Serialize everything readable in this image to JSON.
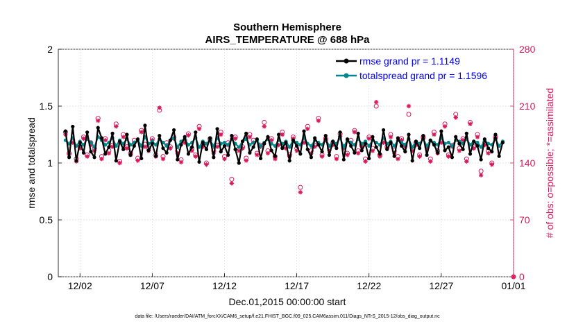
{
  "chart_data": {
    "type": "line",
    "title": "Southern Hemisphere",
    "subtitle": "AIRS_TEMPERATURE @ 688 hPa",
    "ylabel": "rmse and totalspread",
    "ylabel_right": "# of obs: o=possible; *=assimilated",
    "xlabel": "Dec.01,2015 00:00:00 start",
    "footnote": "data file: /Users/raeder/DAI/ATM_forcXX/CAM6_setup/f.e21.FHIST_BGC.f09_025.CAM6assim.011/Diags_NTrS_2015-12/obs_diag_output.nc",
    "ylim": [
      0,
      2
    ],
    "ylim_right": [
      0,
      280
    ],
    "xlim_days": [
      -0.5,
      31
    ],
    "x_ticks": [
      {
        "day": 1,
        "label": "12/02"
      },
      {
        "day": 6,
        "label": "12/07"
      },
      {
        "day": 11,
        "label": "12/12"
      },
      {
        "day": 16,
        "label": "12/17"
      },
      {
        "day": 21,
        "label": "12/22"
      },
      {
        "day": 26,
        "label": "12/27"
      },
      {
        "day": 31,
        "label": "01/01"
      }
    ],
    "y_ticks": [
      "0",
      "0.5",
      "1",
      "1.5",
      "2"
    ],
    "y_tick_values": [
      0,
      0.5,
      1,
      1.5,
      2
    ],
    "y_right_ticks": [
      "0",
      "70",
      "140",
      "210",
      "280"
    ],
    "y_right_tick_values": [
      0,
      70,
      140,
      210,
      280
    ],
    "legend_location": "top-right",
    "series": [
      {
        "name": "rmse grand pr = 1.1149",
        "color": "#000000",
        "axis": "left",
        "values": [
          1.28,
          1.05,
          1.32,
          1.02,
          1.18,
          1.09,
          1.27,
          1.1,
          1.05,
          1.31,
          1.22,
          1.08,
          1.14,
          1.26,
          1.02,
          1.19,
          1.12,
          1.25,
          1.07,
          1.15,
          1.21,
          1.04,
          1.33,
          1.11,
          1.17,
          1.06,
          1.24,
          1.13,
          1.09,
          1.2,
          1.29,
          1.03,
          1.16,
          1.23,
          1.08,
          1.14,
          1.27,
          1.01,
          1.18,
          1.12,
          1.22,
          1.05,
          1.3,
          1.1,
          1.15,
          1.07,
          1.24,
          1.12,
          1.0,
          1.19,
          1.26,
          1.09,
          1.14,
          1.21,
          1.04,
          1.17,
          1.23,
          1.11,
          1.06,
          1.25,
          1.13,
          1.18,
          1.02,
          1.2,
          1.15,
          1.08,
          1.28,
          1.12,
          1.05,
          1.22,
          1.16,
          1.1,
          1.24,
          1.07,
          1.19,
          1.13,
          1.27,
          1.03,
          1.21,
          1.15,
          1.09,
          1.26,
          1.11,
          1.17,
          1.04,
          1.23,
          1.14,
          1.08,
          1.29,
          1.12,
          1.18,
          1.06,
          1.22,
          1.15,
          1.1,
          1.25,
          1.02,
          1.19,
          1.13,
          1.24,
          1.07,
          1.2,
          1.16,
          1.09,
          1.28,
          1.11,
          1.14,
          1.05,
          1.23,
          1.17,
          1.12,
          1.26,
          1.08,
          1.19,
          1.15,
          1.03,
          1.21,
          1.13,
          1.1,
          1.25,
          1.06,
          1.18
        ]
      },
      {
        "name": "totalspread grand pr = 1.1596",
        "color": "#00868b",
        "axis": "left",
        "values": [
          1.2,
          1.17,
          1.22,
          1.15,
          1.19,
          1.16,
          1.21,
          1.18,
          1.14,
          1.23,
          1.2,
          1.16,
          1.18,
          1.22,
          1.15,
          1.2,
          1.17,
          1.21,
          1.16,
          1.18,
          1.2,
          1.15,
          1.23,
          1.17,
          1.19,
          1.16,
          1.21,
          1.18,
          1.15,
          1.2,
          1.22,
          1.14,
          1.19,
          1.21,
          1.16,
          1.18,
          1.22,
          1.14,
          1.19,
          1.17,
          1.2,
          1.15,
          1.22,
          1.17,
          1.18,
          1.16,
          1.21,
          1.17,
          1.14,
          1.19,
          1.21,
          1.16,
          1.18,
          1.2,
          1.15,
          1.18,
          1.21,
          1.17,
          1.15,
          1.2,
          1.17,
          1.19,
          1.14,
          1.2,
          1.18,
          1.16,
          1.22,
          1.17,
          1.15,
          1.2,
          1.18,
          1.16,
          1.21,
          1.15,
          1.19,
          1.17,
          1.22,
          1.14,
          1.2,
          1.18,
          1.16,
          1.21,
          1.17,
          1.19,
          1.15,
          1.2,
          1.18,
          1.16,
          1.22,
          1.17,
          1.19,
          1.15,
          1.2,
          1.18,
          1.16,
          1.21,
          1.14,
          1.19,
          1.17,
          1.21,
          1.15,
          1.2,
          1.18,
          1.16,
          1.22,
          1.17,
          1.18,
          1.15,
          1.2,
          1.19,
          1.17,
          1.21,
          1.16,
          1.19,
          1.18,
          1.14,
          1.2,
          1.17,
          1.16,
          1.21,
          1.15,
          1.19
        ]
      }
    ],
    "obs_counts": {
      "axis": "right",
      "color": "#d6185b",
      "possible": [
        178,
        152,
        168,
        145,
        160,
        172,
        150,
        165,
        158,
        195,
        148,
        170,
        155,
        162,
        188,
        142,
        175,
        160,
        152,
        168,
        146,
        180,
        163,
        158,
        170,
        150,
        205,
        148,
        165,
        160,
        172,
        155,
        144,
        168,
        176,
        158,
        150,
        185,
        163,
        140,
        170,
        155,
        162,
        178,
        148,
        165,
        120,
        172,
        158,
        160,
        146,
        175,
        168,
        152,
        162,
        190,
        155,
        170,
        148,
        165,
        178,
        160,
        150,
        172,
        158,
        110,
        168,
        185,
        155,
        162,
        195,
        150,
        170,
        158,
        165,
        148,
        176,
        160,
        152,
        168,
        180,
        155,
        162,
        145,
        172,
        158,
        210,
        150,
        168,
        160,
        175,
        155,
        148,
        170,
        162,
        200,
        158,
        165,
        150,
        172,
        160,
        145,
        178,
        155,
        168,
        188,
        150,
        162,
        200,
        158,
        170,
        145,
        190,
        160,
        175,
        130,
        165,
        155,
        140,
        172,
        0
      ],
      "assimilated": [
        175,
        150,
        165,
        142,
        158,
        170,
        148,
        162,
        155,
        192,
        145,
        168,
        152,
        160,
        185,
        140,
        172,
        158,
        150,
        165,
        143,
        178,
        160,
        155,
        168,
        148,
        208,
        145,
        162,
        158,
        170,
        152,
        141,
        165,
        174,
        155,
        148,
        182,
        160,
        138,
        168,
        152,
        160,
        175,
        145,
        162,
        115,
        170,
        155,
        158,
        143,
        172,
        165,
        150,
        160,
        185,
        152,
        168,
        145,
        162,
        175,
        158,
        148,
        170,
        155,
        104,
        165,
        182,
        152,
        160,
        192,
        148,
        168,
        155,
        162,
        145,
        173,
        158,
        150,
        165,
        178,
        152,
        160,
        142,
        170,
        155,
        215,
        148,
        165,
        158,
        172,
        152,
        145,
        168,
        160,
        210,
        155,
        162,
        148,
        170,
        158,
        142,
        175,
        152,
        165,
        185,
        148,
        160,
        196,
        155,
        168,
        142,
        188,
        158,
        172,
        125,
        162,
        152,
        138,
        170,
        0
      ]
    }
  }
}
